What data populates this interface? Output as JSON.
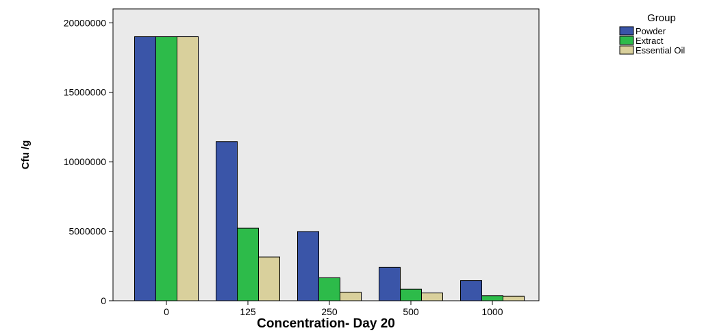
{
  "chart_data": {
    "type": "bar",
    "title": "",
    "xlabel": "Concentration- Day 20",
    "ylabel": "Cfu /g",
    "categories": [
      "0",
      "125",
      "250",
      "500",
      "1000"
    ],
    "series": [
      {
        "name": "Powder",
        "color": "#3a55a8",
        "values": [
          19000000,
          11450000,
          4980000,
          2400000,
          1450000
        ]
      },
      {
        "name": "Extract",
        "color": "#2dbb4a",
        "values": [
          19000000,
          5220000,
          1650000,
          830000,
          360000
        ]
      },
      {
        "name": "Essential Oil",
        "color": "#d9d09c",
        "values": [
          19000000,
          3150000,
          620000,
          560000,
          330000
        ]
      }
    ],
    "ylim": [
      0,
      21000000
    ],
    "yticks": [
      "0",
      "5000000",
      "10000000",
      "15000000",
      "20000000"
    ],
    "ytick_values": [
      0,
      5000000,
      10000000,
      15000000,
      20000000
    ],
    "legend": {
      "title": "Group",
      "placement": "top-right-outside"
    },
    "grid": false,
    "plot_background": "#eaeaea"
  }
}
